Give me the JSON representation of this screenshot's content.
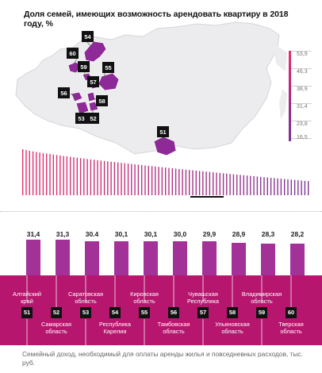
{
  "title": "Доля семей, имеющих возможность арендовать квартиру в 2018 году, %",
  "colors": {
    "accent": "#b6166d",
    "bar": "#a23297",
    "region": "#8e2a97",
    "land": "#ececee"
  },
  "map_labels": [
    {
      "code": "54",
      "label": "54"
    },
    {
      "code": "60",
      "label": "60"
    },
    {
      "code": "59",
      "label": "59"
    },
    {
      "code": "55",
      "label": "55"
    },
    {
      "code": "57",
      "label": "57"
    },
    {
      "code": "56",
      "label": "56"
    },
    {
      "code": "58",
      "label": "58"
    },
    {
      "code": "53",
      "label": "53"
    },
    {
      "code": "52",
      "label": "52"
    },
    {
      "code": "51",
      "label": "51"
    }
  ],
  "scale": {
    "ticks": [
      "53,9",
      "46,3",
      "38,9",
      "31,4",
      "23,8",
      "16,5"
    ]
  },
  "chart_data": {
    "type": "bar",
    "title": "",
    "categories": [
      "Алтайский край",
      "Самарская область",
      "Саратовская область",
      "Республика Карелия",
      "Кировская область",
      "Тамбовская область",
      "Чувашская Республика",
      "Ульяновская область",
      "Владимирская область",
      "Тверская область"
    ],
    "codes": [
      "51",
      "52",
      "53",
      "54",
      "55",
      "56",
      "57",
      "58",
      "59",
      "60"
    ],
    "values": [
      31.4,
      31.3,
      30.4,
      30.1,
      30.1,
      30.0,
      29.9,
      28.9,
      28.3,
      28.2
    ],
    "value_labels": [
      "31,4",
      "31,3",
      "30.4",
      "30,1",
      "30,1",
      "30,0",
      "29,9",
      "28,9",
      "28,3",
      "28,2"
    ],
    "all_regions_range": [
      16.5,
      53.9
    ]
  },
  "regions_top": [
    {
      "code": "51",
      "name": "Алтайский край"
    },
    {
      "code": "53",
      "name": "Саратовская область"
    },
    {
      "code": "55",
      "name": "Кировская область"
    },
    {
      "code": "57",
      "name": "Чувашская Республика"
    },
    {
      "code": "59",
      "name": "Владимирская область"
    }
  ],
  "regions_bottom": [
    {
      "code": "52",
      "name": "Самарская область"
    },
    {
      "code": "54",
      "name": "Республика Карелия"
    },
    {
      "code": "56",
      "name": "Тамбовская область"
    },
    {
      "code": "58",
      "name": "Ульяновская область"
    },
    {
      "code": "60",
      "name": "Тверская область"
    }
  ],
  "footnote": "Семейный доход, необходимый для оплаты аренды жилья и повседневных расходов, тыс. руб."
}
